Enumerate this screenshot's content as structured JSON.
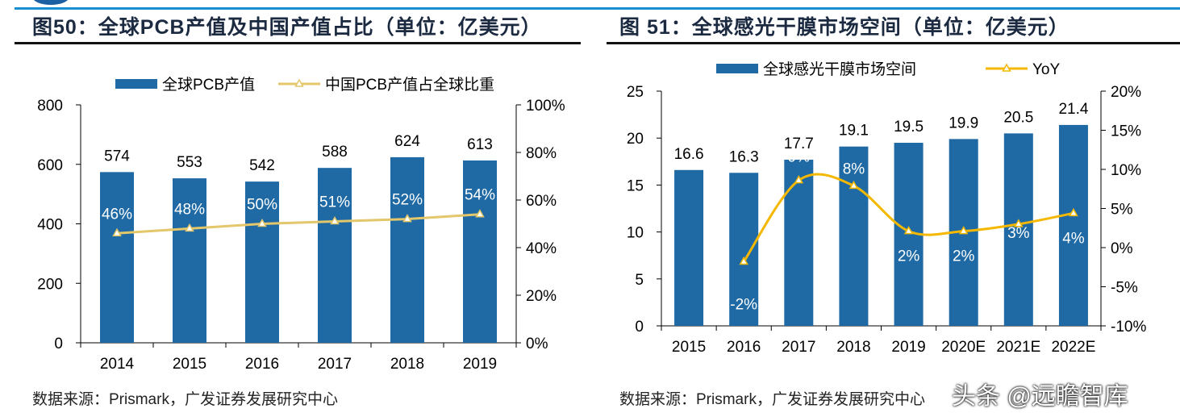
{
  "header": {
    "watermark": "头条 @远瞻智库"
  },
  "chart_data": [
    {
      "type": "bar",
      "title": "图50：全球PCB产值及中国产值占比（单位：亿美元）",
      "source": "数据来源：Prismark，广发证券发展研究中心",
      "categories": [
        "2014",
        "2015",
        "2016",
        "2017",
        "2018",
        "2019"
      ],
      "series": [
        {
          "name": "全球PCB产值",
          "type": "bar",
          "axis": "left",
          "values": [
            574,
            553,
            542,
            588,
            624,
            613
          ],
          "labels": [
            "574",
            "553",
            "542",
            "588",
            "624",
            "613"
          ],
          "color": "#1f6aa5"
        },
        {
          "name": "中国PCB产值占全球比重",
          "type": "line",
          "axis": "right",
          "values": [
            46,
            48,
            50,
            51,
            52,
            54
          ],
          "labels": [
            "46%",
            "48%",
            "50%",
            "51%",
            "52%",
            "54%"
          ],
          "color": "#e3c76a"
        }
      ],
      "left_axis": {
        "ylim": [
          0,
          800
        ],
        "ticks": [
          "0",
          "200",
          "400",
          "600",
          "800"
        ]
      },
      "right_axis": {
        "ylim": [
          0,
          100
        ],
        "ticks": [
          "0%",
          "20%",
          "40%",
          "60%",
          "80%",
          "100%"
        ]
      },
      "legend": "top",
      "grid": false
    },
    {
      "type": "bar",
      "title": "图 51：全球感光干膜市场空间（单位：亿美元）",
      "source": "数据来源：Prismark，广发证券发展研究中心",
      "categories": [
        "2015",
        "2016",
        "2017",
        "2018",
        "2019",
        "2020E",
        "2021E",
        "2022E"
      ],
      "series": [
        {
          "name": "全球感光干膜市场空间",
          "type": "bar",
          "axis": "left",
          "values": [
            16.6,
            16.3,
            17.7,
            19.1,
            19.5,
            19.9,
            20.5,
            21.4
          ],
          "labels": [
            "16.6",
            "16.3",
            "17.7",
            "19.1",
            "19.5",
            "19.9",
            "20.5",
            "21.4"
          ],
          "color": "#1f6aa5"
        },
        {
          "name": "YoY",
          "type": "line",
          "axis": "right",
          "values": [
            null,
            -1.8,
            8.6,
            7.9,
            2.1,
            2.1,
            3.0,
            4.4
          ],
          "labels": [
            "",
            "-2%",
            "9%",
            "8%",
            "2%",
            "2%",
            "3%",
            "4%"
          ],
          "color": "#f5b800"
        }
      ],
      "left_axis": {
        "ylim": [
          0,
          25
        ],
        "ticks": [
          "0",
          "5",
          "10",
          "15",
          "20",
          "25"
        ]
      },
      "right_axis": {
        "ylim": [
          -10,
          20
        ],
        "ticks": [
          "-10%",
          "-5%",
          "0%",
          "5%",
          "10%",
          "15%",
          "20%"
        ]
      },
      "legend": "top",
      "grid": false
    }
  ]
}
